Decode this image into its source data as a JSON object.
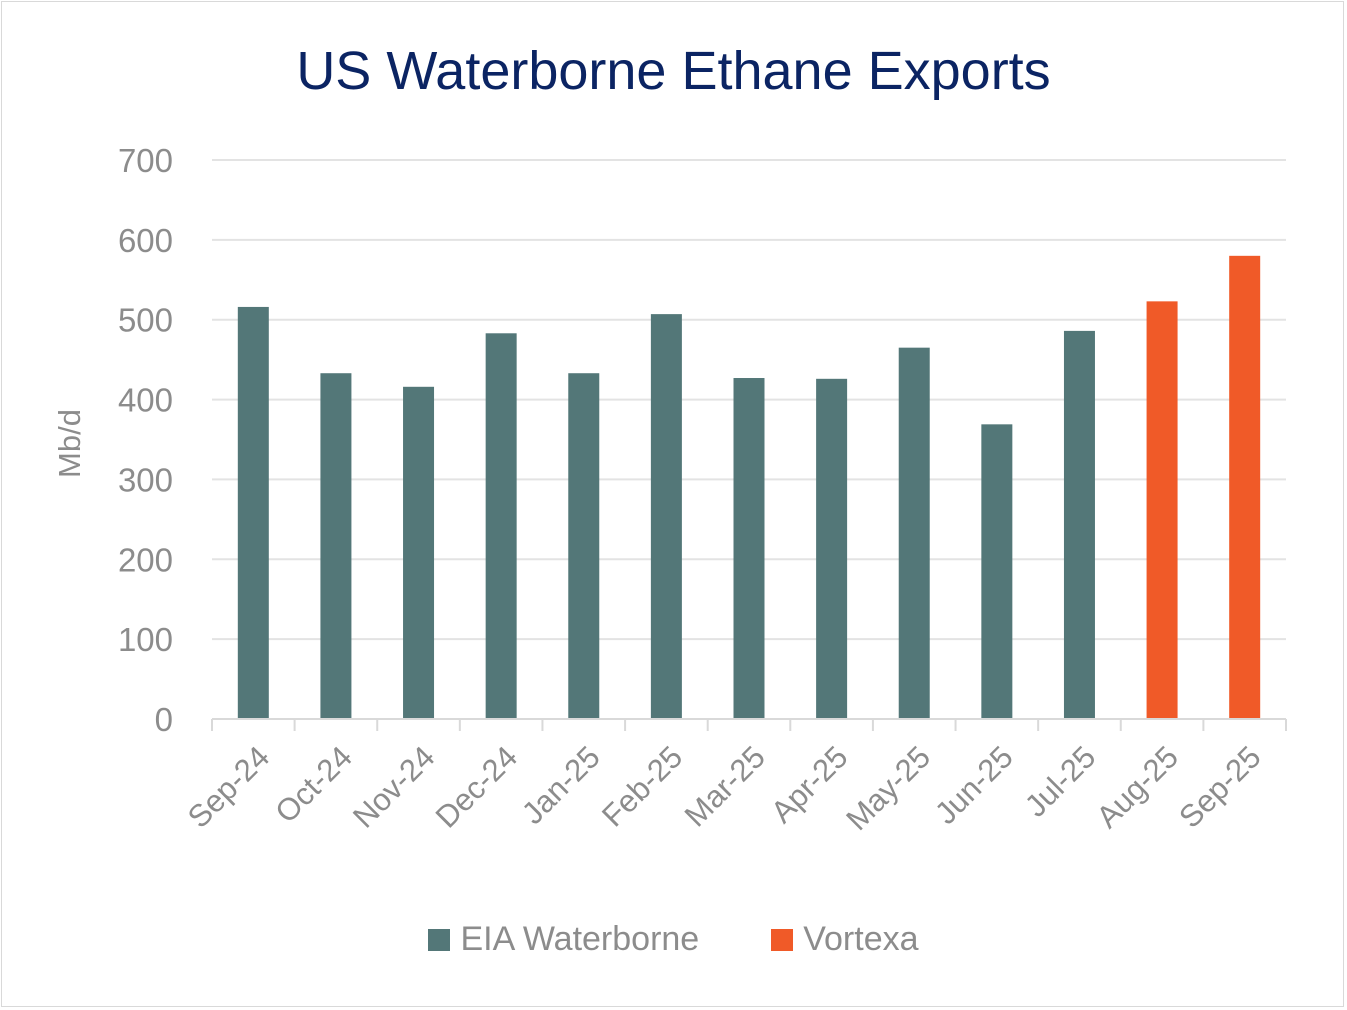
{
  "chart_data": {
    "type": "bar",
    "title": "US Waterborne Ethane Exports",
    "ylabel": "Mb/d",
    "xlabel": "",
    "ylim": [
      0,
      700
    ],
    "yticks": [
      "0",
      "100",
      "200",
      "300",
      "400",
      "500",
      "600",
      "700"
    ],
    "grid": true,
    "legend_placement": "bottom",
    "categories": [
      "Sep-24",
      "Oct-24",
      "Nov-24",
      "Dec-24",
      "Jan-25",
      "Feb-25",
      "Mar-25",
      "Apr-25",
      "May-25",
      "Jun-25",
      "Jul-25",
      "Aug-25",
      "Sep-25"
    ],
    "series": [
      {
        "name": "EIA Waterborne",
        "color": "#537778",
        "values": [
          516,
          433,
          416,
          483,
          433,
          507,
          427,
          426,
          465,
          369,
          486,
          null,
          null
        ]
      },
      {
        "name": "Vortexa",
        "color": "#f05a28",
        "values": [
          null,
          null,
          null,
          null,
          null,
          null,
          null,
          null,
          null,
          null,
          null,
          523,
          580
        ]
      }
    ]
  }
}
